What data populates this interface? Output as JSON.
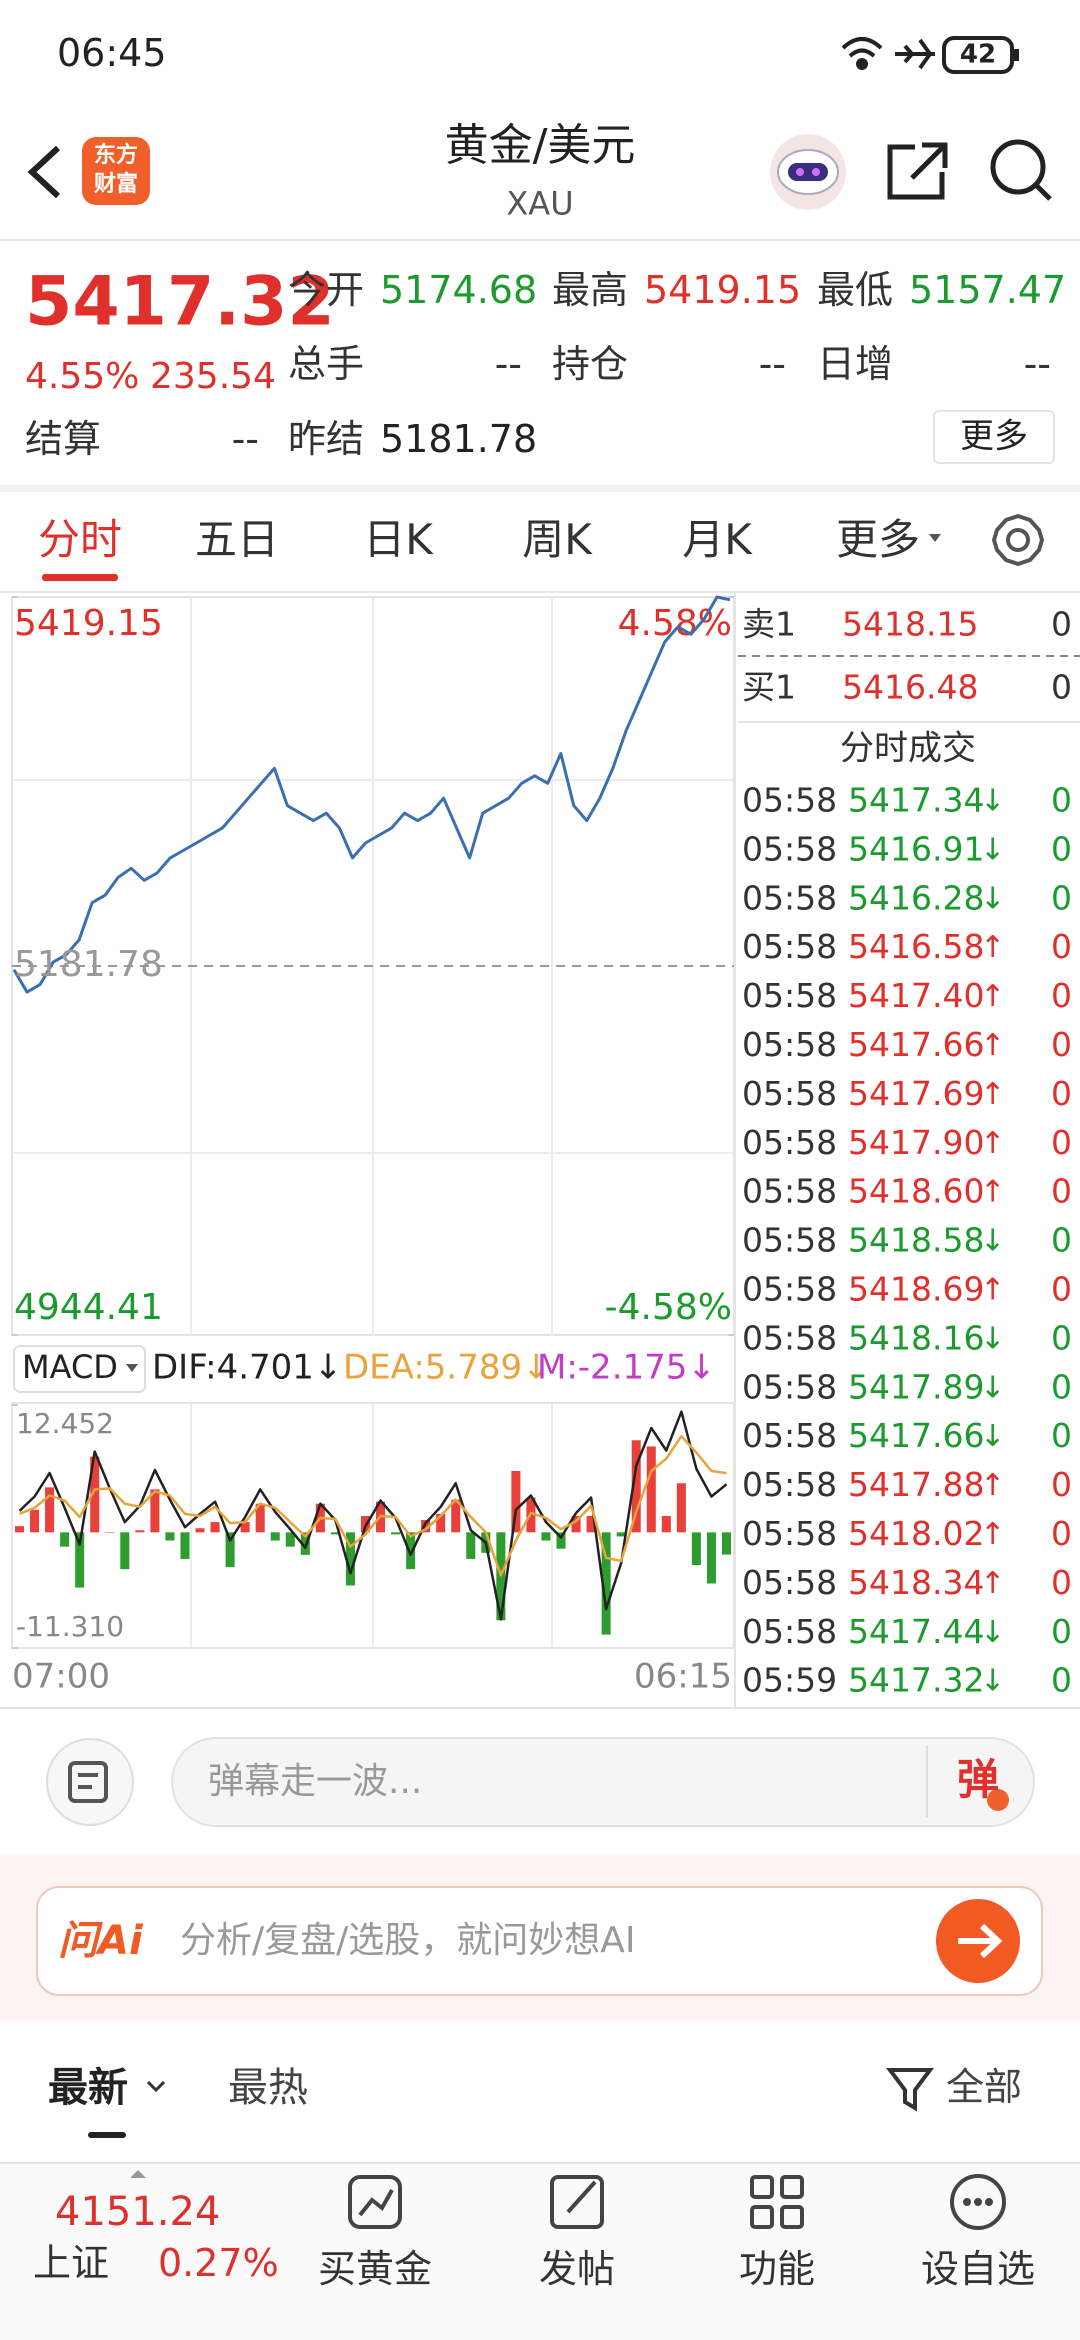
{
  "status_bar": {
    "time": "06:45",
    "battery": "42"
  },
  "header": {
    "logo": [
      "东方",
      "财富"
    ],
    "title": "黄金/美元",
    "subtitle": "XAU"
  },
  "quote": {
    "price": "5417.32",
    "change_pct": "4.55%",
    "change": "235.54",
    "color": "#e0302c",
    "fields": [
      {
        "label": "今开",
        "value": "5174.68",
        "color": "#1b9a2e"
      },
      {
        "label": "最高",
        "value": "5419.15",
        "color": "#e0302c"
      },
      {
        "label": "最低",
        "value": "5157.47",
        "color": "#1b9a2e"
      },
      {
        "label": "总手",
        "value": "--",
        "color": "#333333"
      },
      {
        "label": "持仓",
        "value": "--",
        "color": "#333333"
      },
      {
        "label": "日增",
        "value": "--",
        "color": "#333333"
      },
      {
        "label": "结算",
        "value": "--",
        "color": "#333333"
      },
      {
        "label": "昨结",
        "value": "5181.78",
        "color": "#222222"
      }
    ],
    "more": "更多"
  },
  "tabs": {
    "items": [
      "分时",
      "五日",
      "日K",
      "周K",
      "月K",
      "更多"
    ],
    "active": 0,
    "active_color": "#e0302c"
  },
  "chart_data": [
    {
      "type": "line",
      "color": "#3a6fb0",
      "ylim": [
        4944.41,
        5419.15
      ],
      "yticks": [
        5419.15,
        4944.41
      ],
      "y2lim": [
        -4.58,
        4.58
      ],
      "y2ticks": [
        {
          "value": 4.58,
          "label": "4.58%"
        },
        {
          "value": -4.58,
          "label": "-4.58%"
        }
      ],
      "reference": 5181.78,
      "up_color": "#e0302c",
      "down_color": "#1b9a2e",
      "values": [
        5179.38,
        5165.0,
        5169.8,
        5184.2,
        5189.0,
        5198.6,
        5222.5,
        5227.3,
        5238.8,
        5244.6,
        5236.9,
        5241.7,
        5251.3,
        5256.1,
        5260.9,
        5265.7,
        5270.5,
        5280.1,
        5289.7,
        5299.3,
        5308.9,
        5284.9,
        5280.1,
        5275.3,
        5280.1,
        5270.5,
        5251.3,
        5260.9,
        5265.7,
        5270.5,
        5280.1,
        5275.3,
        5280.1,
        5289.7,
        5270.5,
        5251.3,
        5280.1,
        5284.9,
        5289.7,
        5299.3,
        5304.1,
        5299.3,
        5318.5,
        5284.9,
        5275.3,
        5289.7,
        5308.9,
        5332.8,
        5352.0,
        5371.2,
        5390.4,
        5399.9,
        5395.2,
        5404.8,
        5419.15,
        5417.32
      ]
    },
    {
      "type": "combo",
      "indicator": "MACD",
      "ylim": [
        -11.31,
        12.452
      ],
      "yticks": [
        12.452,
        {
          "value": -11.31,
          "label": "-11.310"
        }
      ],
      "xtick_labels": [
        "07:00",
        "06:15"
      ],
      "up_color": "#e8403a",
      "down_color": "#2e9c2e",
      "series": [
        {
          "name": "DIF:4.701↓",
          "color": "#222222",
          "kind": "line",
          "values": [
            2.1,
            3.5,
            5.8,
            2.4,
            -1.2,
            7.9,
            4.3,
            1.0,
            2.6,
            6.1,
            3.2,
            0.5,
            1.8,
            3.0,
            -0.8,
            1.5,
            4.2,
            2.0,
            0.3,
            -1.5,
            2.8,
            1.2,
            -4.0,
            0.6,
            3.1,
            1.4,
            -2.2,
            0.9,
            2.5,
            4.8,
            0.2,
            -1.0,
            -8.5,
            2.2,
            3.6,
            1.0,
            -0.5,
            1.9,
            3.4,
            -7.5,
            -3.0,
            6.5,
            10.2,
            8.0,
            11.8,
            6.2,
            3.5,
            4.701
          ]
        },
        {
          "name": "DEA:5.789↓",
          "color": "#e8a33a",
          "kind": "line",
          "values": [
            1.8,
            2.4,
            3.6,
            3.1,
            1.5,
            4.2,
            4.3,
            2.8,
            2.5,
            4.0,
            3.6,
            1.8,
            1.6,
            2.5,
            0.9,
            1.0,
            2.8,
            2.4,
            1.0,
            -0.4,
            1.4,
            1.3,
            -1.4,
            -0.2,
            1.6,
            1.5,
            -0.4,
            0.3,
            1.6,
            3.2,
            1.5,
            0.0,
            -4.2,
            -0.8,
            1.9,
            1.4,
            0.3,
            1.1,
            2.6,
            -2.5,
            -2.8,
            2.0,
            6.0,
            7.2,
            9.4,
            7.8,
            6.0,
            5.789
          ]
        },
        {
          "name": "M:-2.175↓",
          "color": "#c23cc7",
          "kind": "bar",
          "values": [
            0.6,
            2.2,
            4.4,
            -1.4,
            -5.4,
            7.4,
            0,
            -3.6,
            0.2,
            4.2,
            -0.8,
            -2.6,
            0.4,
            1.0,
            -3.4,
            1.0,
            2.8,
            -0.8,
            -1.4,
            -2.2,
            2.8,
            -0.2,
            -5.2,
            1.6,
            3.0,
            -0.2,
            -3.6,
            1.2,
            1.8,
            3.2,
            -2.6,
            -2.0,
            -8.6,
            6.0,
            3.4,
            -0.8,
            -1.6,
            1.6,
            1.6,
            -10.0,
            -0.4,
            9.0,
            8.4,
            1.6,
            4.8,
            -3.2,
            -5.0,
            -2.175
          ]
        }
      ]
    }
  ],
  "order_book": [
    {
      "side": "卖1",
      "price": "5418.15",
      "volume": "0",
      "color": "#e0302c"
    },
    {
      "side": "买1",
      "price": "5416.48",
      "volume": "0",
      "color": "#e0302c"
    }
  ],
  "trades_title": "分时成交",
  "trades": [
    {
      "time": "05:58",
      "price": "5417.34",
      "dir": "↓",
      "volume": "0",
      "color": "#1b9a2e"
    },
    {
      "time": "05:58",
      "price": "5416.91",
      "dir": "↓",
      "volume": "0",
      "color": "#1b9a2e"
    },
    {
      "time": "05:58",
      "price": "5416.28",
      "dir": "↓",
      "volume": "0",
      "color": "#1b9a2e"
    },
    {
      "time": "05:58",
      "price": "5416.58",
      "dir": "↑",
      "volume": "0",
      "color": "#e0302c"
    },
    {
      "time": "05:58",
      "price": "5417.40",
      "dir": "↑",
      "volume": "0",
      "color": "#e0302c"
    },
    {
      "time": "05:58",
      "price": "5417.66",
      "dir": "↑",
      "volume": "0",
      "color": "#e0302c"
    },
    {
      "time": "05:58",
      "price": "5417.69",
      "dir": "↑",
      "volume": "0",
      "color": "#e0302c"
    },
    {
      "time": "05:58",
      "price": "5417.90",
      "dir": "↑",
      "volume": "0",
      "color": "#e0302c"
    },
    {
      "time": "05:58",
      "price": "5418.60",
      "dir": "↑",
      "volume": "0",
      "color": "#e0302c"
    },
    {
      "time": "05:58",
      "price": "5418.58",
      "dir": "↓",
      "volume": "0",
      "color": "#1b9a2e"
    },
    {
      "time": "05:58",
      "price": "5418.69",
      "dir": "↑",
      "volume": "0",
      "color": "#e0302c"
    },
    {
      "time": "05:58",
      "price": "5418.16",
      "dir": "↓",
      "volume": "0",
      "color": "#1b9a2e"
    },
    {
      "time": "05:58",
      "price": "5417.89",
      "dir": "↓",
      "volume": "0",
      "color": "#1b9a2e"
    },
    {
      "time": "05:58",
      "price": "5417.66",
      "dir": "↓",
      "volume": "0",
      "color": "#1b9a2e"
    },
    {
      "time": "05:58",
      "price": "5417.88",
      "dir": "↑",
      "volume": "0",
      "color": "#e0302c"
    },
    {
      "time": "05:58",
      "price": "5418.02",
      "dir": "↑",
      "volume": "0",
      "color": "#e0302c"
    },
    {
      "time": "05:58",
      "price": "5418.34",
      "dir": "↑",
      "volume": "0",
      "color": "#e0302c"
    },
    {
      "time": "05:58",
      "price": "5417.44",
      "dir": "↓",
      "volume": "0",
      "color": "#1b9a2e"
    },
    {
      "time": "05:59",
      "price": "5417.32",
      "dir": "↓",
      "volume": "0",
      "color": "#1b9a2e"
    }
  ],
  "danmu": {
    "placeholder": "弹幕走一波...",
    "button": "弹"
  },
  "ai": {
    "logo": "问Ai",
    "placeholder": "分析/复盘/选股，就问妙想AI"
  },
  "feed_tabs": {
    "items": [
      "最新",
      "最热"
    ],
    "filter": "全部"
  },
  "bottom_nav": {
    "index_value": "4151.24",
    "index_name": "上证",
    "index_change": "0.27%",
    "items": [
      "买黄金",
      "发帖",
      "功能",
      "设自选"
    ]
  }
}
